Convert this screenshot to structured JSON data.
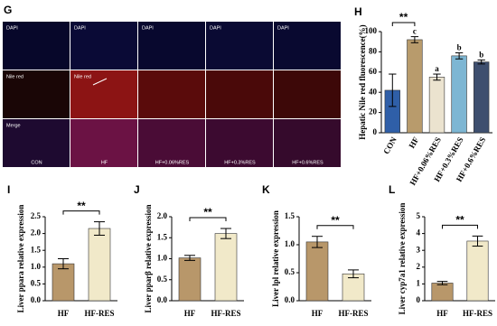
{
  "image_panel": {
    "panel": "G",
    "columns": [
      "CON",
      "HF",
      "HF+0.06%RES",
      "HF+0.3%RES",
      "HF+0.6%RES"
    ],
    "cell_labels": [
      [
        "DAPI",
        "DAPI",
        "DAPI",
        "DAPI",
        "DAPI"
      ],
      [
        "Nile red",
        "Nile red",
        null,
        null,
        null
      ],
      [
        "Merge",
        null,
        null,
        null,
        null
      ]
    ]
  },
  "chart_data": [
    {
      "type": "bar",
      "panel": "H",
      "ylabel": "Hepatic Nile red fluorescence(%)",
      "categories": [
        "CON",
        "HF",
        "HF+0.06%RES",
        "HF+0.3%RES",
        "HF+0.6%RES"
      ],
      "values": [
        42,
        92,
        55,
        76,
        70
      ],
      "errors": [
        16,
        3,
        3,
        3,
        2
      ],
      "colors": [
        "#2f5fa8",
        "#b89b6c",
        "#ebe3cf",
        "#7db6d3",
        "#3e4f6f"
      ],
      "letters": [
        null,
        "c",
        "a",
        "b",
        "b"
      ],
      "significance": "**",
      "ylim": [
        0,
        100
      ],
      "yticks": [
        0,
        20,
        40,
        60,
        80,
        100
      ]
    },
    {
      "type": "bar",
      "panel": "I",
      "ylabel": "Liver ppara relative expression",
      "categories": [
        "HF",
        "HF-RES"
      ],
      "values": [
        1.1,
        2.15
      ],
      "errors": [
        0.15,
        0.2
      ],
      "colors": [
        "#b8976a",
        "#f1e9c9"
      ],
      "significance": "**",
      "ylim": [
        0,
        2.5
      ],
      "yticks": [
        {
          "value": 0,
          "label": "0.0"
        },
        0.5,
        {
          "value": 1,
          "label": "1.0"
        },
        1.5,
        {
          "value": 2,
          "label": "2.0"
        },
        2.5
      ]
    },
    {
      "type": "bar",
      "panel": "J",
      "ylabel": "Liver pparβ relative expression",
      "categories": [
        "HF",
        "HF-RES"
      ],
      "values": [
        1.02,
        1.6
      ],
      "errors": [
        0.06,
        0.12
      ],
      "colors": [
        "#b8976a",
        "#f1e9c9"
      ],
      "significance": "**",
      "ylim": [
        0,
        2
      ],
      "yticks": [
        {
          "value": 0,
          "label": "0.0"
        },
        0.5,
        {
          "value": 1,
          "label": "1.0"
        },
        1.5,
        {
          "value": 2,
          "label": "2.0"
        }
      ]
    },
    {
      "type": "bar",
      "panel": "K",
      "ylabel": "Liver lpl relative expression",
      "categories": [
        "HF",
        "HF-RES"
      ],
      "values": [
        1.05,
        0.48
      ],
      "errors": [
        0.1,
        0.07
      ],
      "colors": [
        "#b8976a",
        "#f1e9c9"
      ],
      "significance": "**",
      "ylim": [
        0,
        1.5
      ],
      "yticks": [
        {
          "value": 0,
          "label": "0.0"
        },
        0.5,
        {
          "value": 1,
          "label": "1.0"
        },
        1.5
      ]
    },
    {
      "type": "bar",
      "panel": "L",
      "ylabel": "Liver cyp7a1 relative expression",
      "categories": [
        "HF",
        "HF-RES"
      ],
      "values": [
        1.05,
        3.55
      ],
      "errors": [
        0.1,
        0.3
      ],
      "colors": [
        "#b8976a",
        "#f1e9c9"
      ],
      "significance": "**",
      "ylim": [
        0,
        5
      ],
      "yticks": [
        0,
        1,
        2,
        3,
        4,
        5
      ]
    }
  ]
}
